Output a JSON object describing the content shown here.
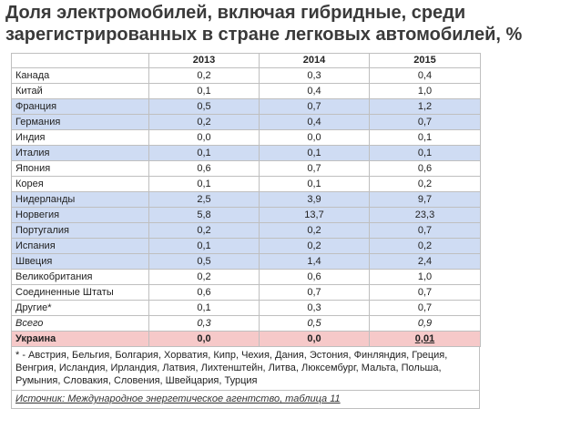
{
  "title_lines": [
    "Доля электромобилей, включая гибридные, среди",
    "зарегистрированных в стране легковых автомобилей, %"
  ],
  "colors": {
    "highlight_blue": "#cfdcf3",
    "highlight_red": "#f6c9c9"
  },
  "chart_data": {
    "type": "table",
    "title": "Доля электромобилей, включая гибридные, среди зарегистрированных в стране легковых автомобилей, %",
    "columns": [
      "",
      "2013",
      "2014",
      "2015"
    ],
    "rows": [
      {
        "label": "Канада",
        "values": [
          "0,2",
          "0,3",
          "0,4"
        ],
        "style": "plain"
      },
      {
        "label": "Китай",
        "values": [
          "0,1",
          "0,4",
          "1,0"
        ],
        "style": "plain"
      },
      {
        "label": "Франция",
        "values": [
          "0,5",
          "0,7",
          "1,2"
        ],
        "style": "blue"
      },
      {
        "label": "Германия",
        "values": [
          "0,2",
          "0,4",
          "0,7"
        ],
        "style": "blue"
      },
      {
        "label": "Индия",
        "values": [
          "0,0",
          "0,0",
          "0,1"
        ],
        "style": "plain"
      },
      {
        "label": "Италия",
        "values": [
          "0,1",
          "0,1",
          "0,1"
        ],
        "style": "blue"
      },
      {
        "label": "Япония",
        "values": [
          "0,6",
          "0,7",
          "0,6"
        ],
        "style": "plain"
      },
      {
        "label": "Корея",
        "values": [
          "0,1",
          "0,1",
          "0,2"
        ],
        "style": "plain"
      },
      {
        "label": "Нидерланды",
        "values": [
          "2,5",
          "3,9",
          "9,7"
        ],
        "style": "blue"
      },
      {
        "label": "Норвегия",
        "values": [
          "5,8",
          "13,7",
          "23,3"
        ],
        "style": "blue"
      },
      {
        "label": "Португалия",
        "values": [
          "0,2",
          "0,2",
          "0,7"
        ],
        "style": "blue"
      },
      {
        "label": "Испания",
        "values": [
          "0,1",
          "0,2",
          "0,2"
        ],
        "style": "blue"
      },
      {
        "label": "Швеция",
        "values": [
          "0,5",
          "1,4",
          "2,4"
        ],
        "style": "blue"
      },
      {
        "label": "Великобритания",
        "values": [
          "0,2",
          "0,6",
          "1,0"
        ],
        "style": "plain"
      },
      {
        "label": "Соединенные Штаты",
        "values": [
          "0,6",
          "0,7",
          "0,7"
        ],
        "style": "plain"
      },
      {
        "label": "Другие*",
        "values": [
          "0,1",
          "0,3",
          "0,7"
        ],
        "style": "plain"
      },
      {
        "label": "Всего",
        "values": [
          "0,3",
          "0,5",
          "0,9"
        ],
        "style": "italic"
      },
      {
        "label": "Украина",
        "values": [
          "0,0",
          "0,0",
          "0,01"
        ],
        "style": "ukraine"
      }
    ],
    "footnote": "* - Австрия, Бельгия, Болгария, Хорватия, Кипр, Чехия, Дания, Эстония, Финляндия, Греция, Венгрия, Исландия, Ирландия, Латвия, Лихтенштейн, Литва, Люксембург, Мальта, Польша, Румыния, Словакия, Словения, Швейцария, Турция",
    "source": "Источник: Международное энергетическое агентство, таблица 11"
  }
}
